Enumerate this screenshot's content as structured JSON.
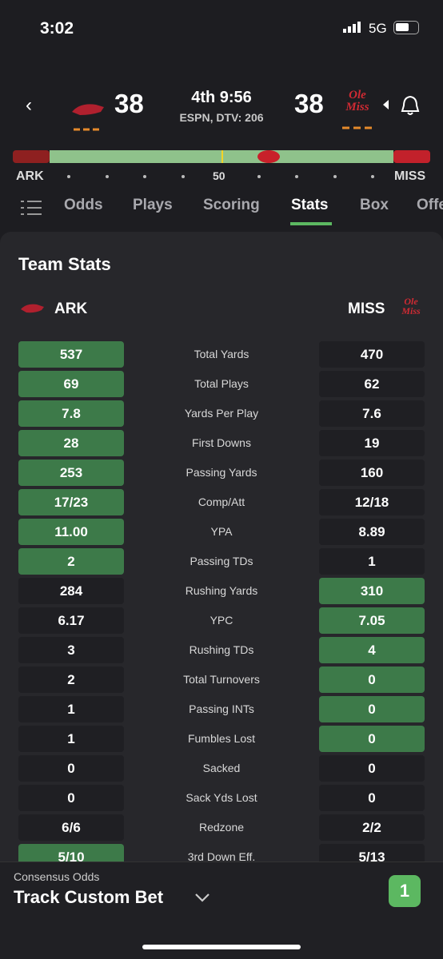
{
  "status_bar": {
    "time": "3:02",
    "network": "5G"
  },
  "header": {
    "home_score": "38",
    "clock": "4th 9:56",
    "broadcast": "ESPN, DTV: 206",
    "away_score": "38",
    "away_logo_text": "Ole Miss"
  },
  "field": {
    "left_team": "ARK",
    "midfield": "50",
    "right_team": "MISS"
  },
  "tabs": {
    "items": [
      "Odds",
      "Plays",
      "Scoring",
      "Stats",
      "Box",
      "Offe"
    ],
    "active": 3
  },
  "team_stats": {
    "title": "Team Stats",
    "left_team": "ARK",
    "right_team": "MISS",
    "right_logo_text": "Ole Miss",
    "rows": [
      {
        "label": "Total Yards",
        "left": "537",
        "right": "470",
        "highlight": "left"
      },
      {
        "label": "Total Plays",
        "left": "69",
        "right": "62",
        "highlight": "left"
      },
      {
        "label": "Yards Per Play",
        "left": "7.8",
        "right": "7.6",
        "highlight": "left"
      },
      {
        "label": "First Downs",
        "left": "28",
        "right": "19",
        "highlight": "left"
      },
      {
        "label": "Passing Yards",
        "left": "253",
        "right": "160",
        "highlight": "left"
      },
      {
        "label": "Comp/Att",
        "left": "17/23",
        "right": "12/18",
        "highlight": "left"
      },
      {
        "label": "YPA",
        "left": "11.00",
        "right": "8.89",
        "highlight": "left"
      },
      {
        "label": "Passing TDs",
        "left": "2",
        "right": "1",
        "highlight": "left"
      },
      {
        "label": "Rushing Yards",
        "left": "284",
        "right": "310",
        "highlight": "right"
      },
      {
        "label": "YPC",
        "left": "6.17",
        "right": "7.05",
        "highlight": "right"
      },
      {
        "label": "Rushing TDs",
        "left": "3",
        "right": "4",
        "highlight": "right"
      },
      {
        "label": "Total Turnovers",
        "left": "2",
        "right": "0",
        "highlight": "right"
      },
      {
        "label": "Passing INTs",
        "left": "1",
        "right": "0",
        "highlight": "right"
      },
      {
        "label": "Fumbles Lost",
        "left": "1",
        "right": "0",
        "highlight": "right"
      },
      {
        "label": "Sacked",
        "left": "0",
        "right": "0",
        "highlight": null
      },
      {
        "label": "Sack Yds Lost",
        "left": "0",
        "right": "0",
        "highlight": null
      },
      {
        "label": "Redzone",
        "left": "6/6",
        "right": "2/2",
        "highlight": null
      },
      {
        "label": "3rd Down Eff.",
        "left": "5/10",
        "right": "5/13",
        "highlight": "left"
      }
    ]
  },
  "footer": {
    "subtitle": "Consensus Odds",
    "title": "Track Custom Bet",
    "badge": "1"
  }
}
